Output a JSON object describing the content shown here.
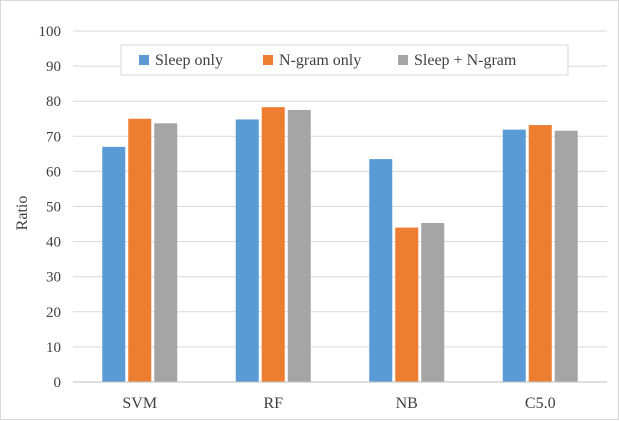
{
  "chart_data": {
    "type": "bar",
    "categories": [
      "SVM",
      "RF",
      "NB",
      "C5.0"
    ],
    "series": [
      {
        "name": "Sleep only",
        "color": "#5b9bd5",
        "values": [
          67.0,
          74.8,
          63.5,
          71.9
        ]
      },
      {
        "name": "N-gram only",
        "color": "#ed7d31",
        "values": [
          75.0,
          78.3,
          44.0,
          73.2
        ]
      },
      {
        "name": "Sleep + N-gram",
        "color": "#a5a5a5",
        "values": [
          73.7,
          77.5,
          45.3,
          71.6
        ]
      }
    ],
    "ylabel": "Ratio",
    "xlabel": "",
    "ylim": [
      0,
      100
    ],
    "yticks": [
      "0",
      "10",
      "20",
      "30",
      "40",
      "50",
      "60",
      "70",
      "80",
      "90",
      "100"
    ],
    "grid": true,
    "legend_position": "top-center"
  }
}
